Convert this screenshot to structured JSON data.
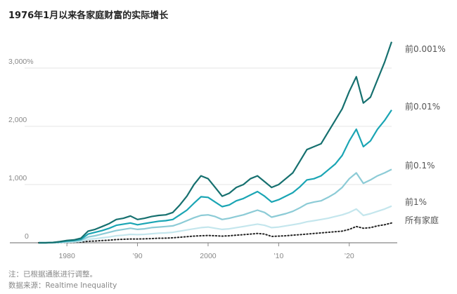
{
  "chart_data": {
    "type": "line",
    "title": "1976年1月以来各家庭财富的实际增长",
    "xlabel": "",
    "ylabel": "",
    "xlim": [
      1976,
      2026
    ],
    "ylim": [
      0,
      3500
    ],
    "y_ticks": [
      0,
      1000,
      2000,
      3000
    ],
    "y_tick_labels": [
      "0",
      "1,000",
      "2,000",
      "3,000%"
    ],
    "x_ticks": [
      1980,
      1990,
      2000,
      2010,
      2020
    ],
    "x_tick_labels": [
      "1980",
      "’90",
      "2000",
      "’10",
      "’20"
    ],
    "grid": true,
    "legend": "right, inline labels",
    "x": [
      1976,
      1977,
      1978,
      1979,
      1980,
      1981,
      1982,
      1983,
      1984,
      1985,
      1986,
      1987,
      1988,
      1989,
      1990,
      1991,
      1992,
      1993,
      1994,
      1995,
      1996,
      1997,
      1998,
      1999,
      2000,
      2001,
      2002,
      2003,
      2004,
      2005,
      2006,
      2007,
      2008,
      2009,
      2010,
      2011,
      2012,
      2013,
      2014,
      2015,
      2016,
      2017,
      2018,
      2019,
      2020,
      2021,
      2022,
      2023,
      2024,
      2025,
      2026
    ],
    "series": [
      {
        "name": "前0.001%",
        "color": "#16706f",
        "style": "solid",
        "values": [
          0,
          0,
          5,
          20,
          40,
          50,
          80,
          200,
          230,
          280,
          330,
          400,
          420,
          460,
          400,
          420,
          450,
          470,
          480,
          520,
          650,
          800,
          1000,
          1150,
          1100,
          950,
          800,
          850,
          950,
          1000,
          1100,
          1150,
          1050,
          950,
          1000,
          1100,
          1200,
          1400,
          1600,
          1650,
          1700,
          1900,
          2100,
          2300,
          2600,
          2850,
          2400,
          2500,
          2800,
          3100,
          3450
        ]
      },
      {
        "name": "前0.01%",
        "color": "#1aa5b4",
        "style": "solid",
        "values": [
          0,
          0,
          5,
          15,
          30,
          40,
          60,
          150,
          180,
          210,
          250,
          300,
          320,
          340,
          310,
          330,
          350,
          370,
          380,
          400,
          480,
          560,
          680,
          790,
          780,
          700,
          620,
          650,
          720,
          760,
          820,
          880,
          800,
          700,
          740,
          800,
          860,
          960,
          1080,
          1100,
          1150,
          1250,
          1350,
          1500,
          1750,
          1950,
          1650,
          1750,
          1950,
          2100,
          2280
        ]
      },
      {
        "name": "前0.1%",
        "color": "#8ccbd6",
        "style": "solid",
        "values": [
          0,
          0,
          3,
          10,
          20,
          30,
          45,
          100,
          120,
          150,
          180,
          210,
          230,
          250,
          230,
          240,
          260,
          270,
          280,
          290,
          330,
          380,
          430,
          470,
          480,
          450,
          400,
          420,
          450,
          480,
          520,
          560,
          520,
          440,
          470,
          500,
          540,
          600,
          670,
          700,
          720,
          780,
          850,
          950,
          1100,
          1200,
          1020,
          1080,
          1150,
          1200,
          1260
        ]
      },
      {
        "name": "前1%",
        "color": "#c4e6ed",
        "style": "solid",
        "values": [
          0,
          0,
          2,
          5,
          10,
          15,
          25,
          60,
          70,
          85,
          100,
          120,
          130,
          145,
          140,
          145,
          155,
          165,
          170,
          180,
          200,
          220,
          240,
          260,
          270,
          250,
          230,
          240,
          260,
          280,
          300,
          320,
          300,
          260,
          270,
          290,
          310,
          330,
          360,
          380,
          400,
          420,
          450,
          480,
          520,
          580,
          470,
          500,
          540,
          580,
          630
        ]
      },
      {
        "name": "所有家庭",
        "color": "#222222",
        "style": "dotted",
        "values": [
          0,
          0,
          0,
          2,
          5,
          8,
          12,
          25,
          30,
          38,
          45,
          55,
          60,
          65,
          65,
          68,
          72,
          78,
          80,
          85,
          95,
          105,
          115,
          120,
          125,
          120,
          115,
          120,
          130,
          140,
          150,
          160,
          150,
          110,
          115,
          120,
          130,
          140,
          150,
          160,
          170,
          180,
          190,
          200,
          230,
          280,
          250,
          260,
          290,
          310,
          340
        ]
      }
    ],
    "label_positions_note": ""
  },
  "notes": {
    "note": "注：已根据通胀进行调整。",
    "source": "数据来源：Realtime Inequality"
  }
}
